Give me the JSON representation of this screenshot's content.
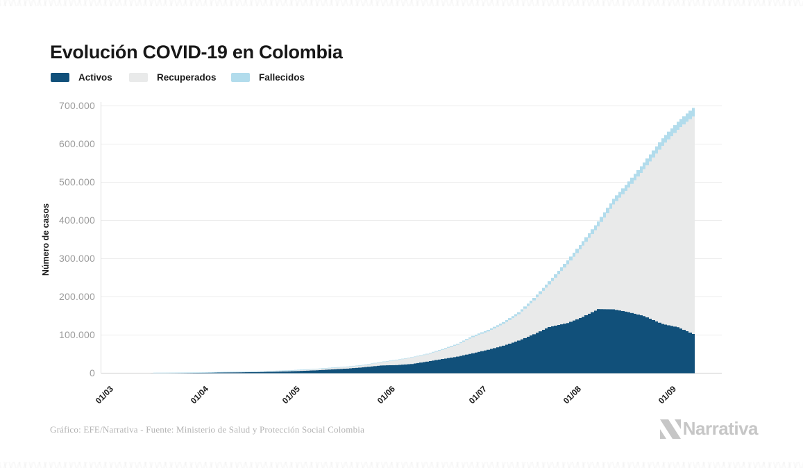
{
  "title": "Evolución COVID-19 en Colombia",
  "legend": [
    {
      "key": "activos",
      "label": "Activos",
      "color": "#11507a"
    },
    {
      "key": "recuperados",
      "label": "Recuperados",
      "color": "#e9eaea"
    },
    {
      "key": "fallecidos",
      "label": "Fallecidos",
      "color": "#b2dcec"
    }
  ],
  "chart_data": {
    "type": "bar",
    "subtype": "stacked-daily-bars",
    "title": "Evolución COVID-19 en Colombia",
    "xlabel": "",
    "ylabel": "Número de casos",
    "ylim": [
      0,
      700000
    ],
    "grid": "horizontal",
    "legend_position": "top-left",
    "date_format": "dd/mm",
    "x_range": {
      "start": "01/03",
      "end": "10/09",
      "num_days": 194
    },
    "x_ticks": [
      {
        "label": "01/03",
        "day": 0
      },
      {
        "label": "01/04",
        "day": 31
      },
      {
        "label": "01/05",
        "day": 61
      },
      {
        "label": "01/06",
        "day": 92
      },
      {
        "label": "01/07",
        "day": 122
      },
      {
        "label": "01/08",
        "day": 153
      },
      {
        "label": "01/09",
        "day": 184
      }
    ],
    "y_ticks": [
      {
        "label": "0",
        "value": 0
      },
      {
        "label": "100.000",
        "value": 100000
      },
      {
        "label": "200.000",
        "value": 200000
      },
      {
        "label": "300.000",
        "value": 300000
      },
      {
        "label": "400.000",
        "value": 400000
      },
      {
        "label": "500.000",
        "value": 500000
      },
      {
        "label": "600.000",
        "value": 600000
      },
      {
        "label": "700.000",
        "value": 700000
      }
    ],
    "stack_order_bottom_to_top": [
      "activos",
      "recuperados",
      "fallecidos"
    ],
    "series_colors": {
      "activos": "#11507a",
      "recuperados": "#e9eaea",
      "fallecidos": "#b2dcec"
    },
    "interpolation": "linear-daily-between-anchors",
    "anchor_columns": [
      "day",
      "date",
      "activos",
      "recuperados",
      "fallecidos"
    ],
    "anchors": [
      [
        0,
        "01/03",
        0,
        0,
        0
      ],
      [
        5,
        "06/03",
        1,
        0,
        0
      ],
      [
        14,
        "15/03",
        44,
        1,
        0
      ],
      [
        20,
        "21/03",
        226,
        3,
        2
      ],
      [
        24,
        "25/03",
        458,
        8,
        4
      ],
      [
        30,
        "31/03",
        859,
        31,
        16
      ],
      [
        35,
        "05/04",
        1362,
        88,
        35
      ],
      [
        40,
        "10/04",
        2196,
        197,
        80
      ],
      [
        45,
        "15/04",
        2498,
        354,
        127
      ],
      [
        50,
        "20/04",
        2984,
        804,
        189
      ],
      [
        55,
        "25/04",
        3842,
        1067,
        233
      ],
      [
        60,
        "30/04",
        4775,
        1439,
        293
      ],
      [
        65,
        "05/05",
        6222,
        2013,
        378
      ],
      [
        70,
        "10/05",
        7895,
        2705,
        463
      ],
      [
        75,
        "15/05",
        10210,
        3460,
        546
      ],
      [
        80,
        "20/05",
        12272,
        4050,
        613
      ],
      [
        85,
        "25/05",
        15432,
        5016,
        727
      ],
      [
        91,
        "31/05",
        20410,
        8034,
        939
      ],
      [
        96,
        "05/06",
        21450,
        12583,
        1087
      ],
      [
        101,
        "10/06",
        24279,
        16427,
        1372
      ],
      [
        106,
        "15/06",
        30557,
        18715,
        1667
      ],
      [
        111,
        "20/06",
        37243,
        23988,
        2045
      ],
      [
        116,
        "25/06",
        43569,
        31133,
        2611
      ],
      [
        121,
        "30/06",
        52421,
        42091,
        3334
      ],
      [
        126,
        "05/07",
        61566,
        47881,
        3942
      ],
      [
        131,
        "10/07",
        72276,
        56983,
        4714
      ],
      [
        136,
        "15/07",
        85467,
        68806,
        5625
      ],
      [
        141,
        "20/07",
        102307,
        88235,
        6736
      ],
      [
        146,
        "25/07",
        121166,
        111360,
        8269
      ],
      [
        152,
        "31/07",
        131555,
        153848,
        10105
      ],
      [
        157,
        "05/08",
        147773,
        186317,
        11624
      ],
      [
        162,
        "10/08",
        168052,
        216417,
        13154
      ],
      [
        167,
        "15/08",
        167459,
        274420,
        14810
      ],
      [
        172,
        "20/08",
        159901,
        326298,
        15979
      ],
      [
        177,
        "25/08",
        149730,
        384354,
        17612
      ],
      [
        183,
        "31/08",
        129001,
        466504,
        19663
      ],
      [
        188,
        "05/09",
        120691,
        516609,
        21156
      ],
      [
        193,
        "10/09",
        102910,
        569479,
        22275
      ]
    ]
  },
  "footer": {
    "credit": "Gráfico: EFE/Narrativa - Fuente: Ministerio de Salud y Protección Social Colombia"
  },
  "branding": {
    "logo_text": "Narrativa",
    "logo_color": "#c6c6c6"
  },
  "colors": {
    "background": "#ffffff",
    "gridline": "#ededed",
    "axis_line": "#dcdcdc",
    "y_tick_text": "#9b9b9b",
    "x_tick_text": "#1a1a1a",
    "title_text": "#171717",
    "footer_text": "#b3b3b3"
  }
}
